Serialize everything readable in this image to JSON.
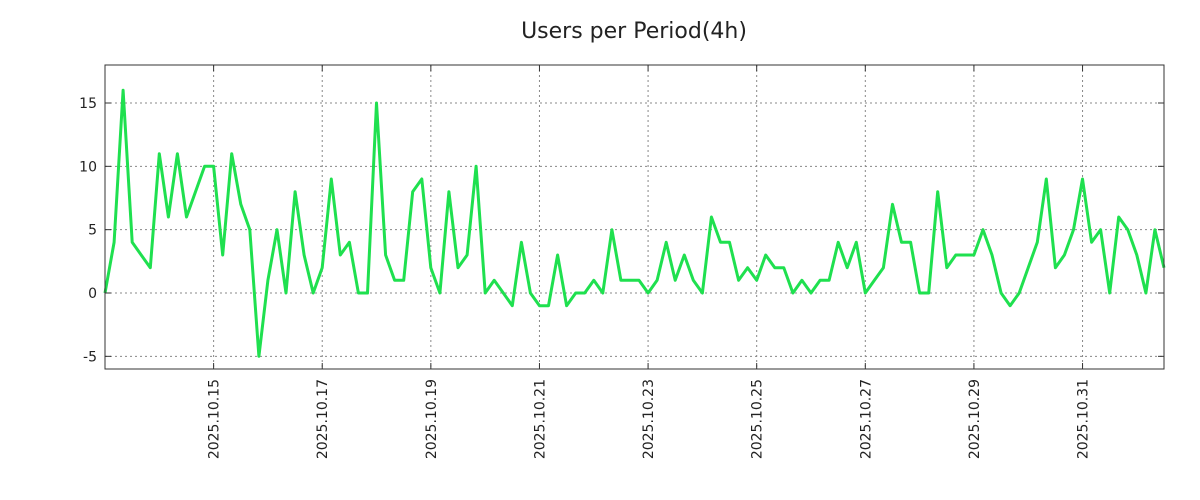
{
  "chart_data": {
    "type": "line",
    "title": "Users per Period(4h)",
    "xlabel": "",
    "ylabel": "",
    "x_start": "2025.10.13 00:00",
    "step_hours": 4,
    "xlim": [
      "2025.10.13 00:00",
      "2025.11.01 12:00"
    ],
    "ylim": [
      -6,
      18
    ],
    "yticks": [
      -5,
      0,
      5,
      10,
      15
    ],
    "xticks": [
      "2025.10.15",
      "2025.10.17",
      "2025.10.19",
      "2025.10.21",
      "2025.10.23",
      "2025.10.25",
      "2025.10.27",
      "2025.10.29",
      "2025.10.31"
    ],
    "grid": true,
    "series": [
      {
        "name": "",
        "color": "#1fe04f",
        "values": [
          0,
          4,
          16,
          4,
          3,
          2,
          11,
          6,
          11,
          6,
          8,
          10,
          10,
          3,
          11,
          7,
          5,
          -5,
          1,
          5,
          0,
          8,
          3,
          0,
          2,
          9,
          3,
          4,
          0,
          0,
          15,
          3,
          1,
          1,
          8,
          9,
          2,
          0,
          8,
          2,
          3,
          10,
          0,
          1,
          0,
          -1,
          4,
          0,
          -1,
          -1,
          3,
          -1,
          0,
          0,
          1,
          0,
          5,
          1,
          1,
          1,
          0,
          1,
          4,
          1,
          3,
          1,
          0,
          6,
          4,
          4,
          1,
          2,
          1,
          3,
          2,
          2,
          0,
          1,
          0,
          1,
          1,
          4,
          2,
          4,
          0,
          1,
          2,
          7,
          4,
          4,
          0,
          0,
          8,
          2,
          3,
          3,
          3,
          5,
          3,
          0,
          -1,
          0,
          2,
          4,
          9,
          2,
          3,
          5,
          9,
          4,
          5,
          0,
          6,
          5,
          3,
          0,
          5,
          2
        ]
      }
    ]
  }
}
